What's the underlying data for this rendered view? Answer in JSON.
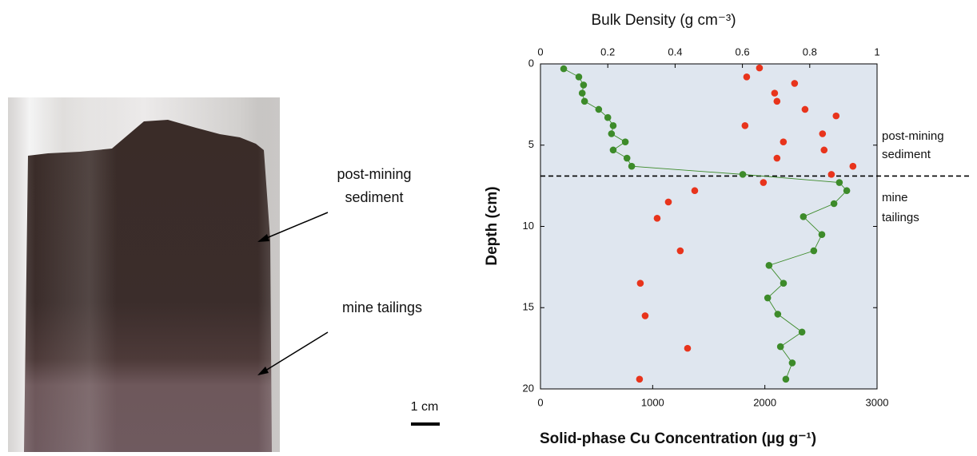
{
  "photo": {
    "labels": [
      "post-mining",
      "sediment",
      "mine tailings"
    ],
    "scale_label": "1 cm"
  },
  "chart_data": {
    "type": "scatter",
    "x2_label": "Bulk Density (g cm⁻³)",
    "x_label": "Solid-phase Cu Concentration (µg g⁻¹)",
    "y_label": "Depth (cm)",
    "xlim": [
      0,
      3000
    ],
    "xticks": [
      0,
      1000,
      2000,
      3000
    ],
    "x2lim": [
      0,
      1
    ],
    "x2ticks": [
      0,
      0.2,
      0.4,
      0.6,
      0.8,
      1
    ],
    "ylim": [
      0,
      20
    ],
    "yticks": [
      0,
      5,
      10,
      15,
      20
    ],
    "y_inverted": true,
    "boundary_depth": 6.9,
    "annotations": [
      "post-mining",
      "sediment",
      "mine",
      "tailings"
    ],
    "series": [
      {
        "color": "#e8341c",
        "connected": false,
        "axis": "x",
        "x": [
          1952,
          1838,
          2265,
          2087,
          2108,
          2358,
          2635,
          1823,
          2514,
          2165,
          2528,
          2108,
          2785,
          2593,
          1987,
          1375,
          1140,
          1040,
          1246,
          890,
          933,
          1311,
          883
        ],
        "y": [
          0.25,
          0.8,
          1.2,
          1.8,
          2.3,
          2.8,
          3.2,
          3.8,
          4.3,
          4.8,
          5.3,
          5.8,
          6.3,
          6.8,
          7.3,
          7.8,
          8.5,
          9.5,
          11.5,
          13.5,
          15.5,
          17.5,
          19.4
        ]
      },
      {
        "color": "#3d8b2a",
        "connected": true,
        "axis": "x2",
        "x": [
          0.069,
          0.114,
          0.128,
          0.124,
          0.131,
          0.173,
          0.2,
          0.216,
          0.211,
          0.252,
          0.216,
          0.257,
          0.271,
          0.601,
          0.888,
          0.91,
          0.872,
          0.781,
          0.836,
          0.812,
          0.679,
          0.722,
          0.675,
          0.705,
          0.777,
          0.713,
          0.748,
          0.729
        ],
        "y": [
          0.3,
          0.8,
          1.3,
          1.8,
          2.3,
          2.8,
          3.3,
          3.8,
          4.3,
          4.8,
          5.3,
          5.8,
          6.3,
          6.8,
          7.3,
          7.8,
          8.6,
          9.4,
          10.5,
          11.5,
          12.4,
          13.5,
          14.4,
          15.4,
          16.5,
          17.4,
          18.4,
          19.4
        ]
      }
    ]
  }
}
